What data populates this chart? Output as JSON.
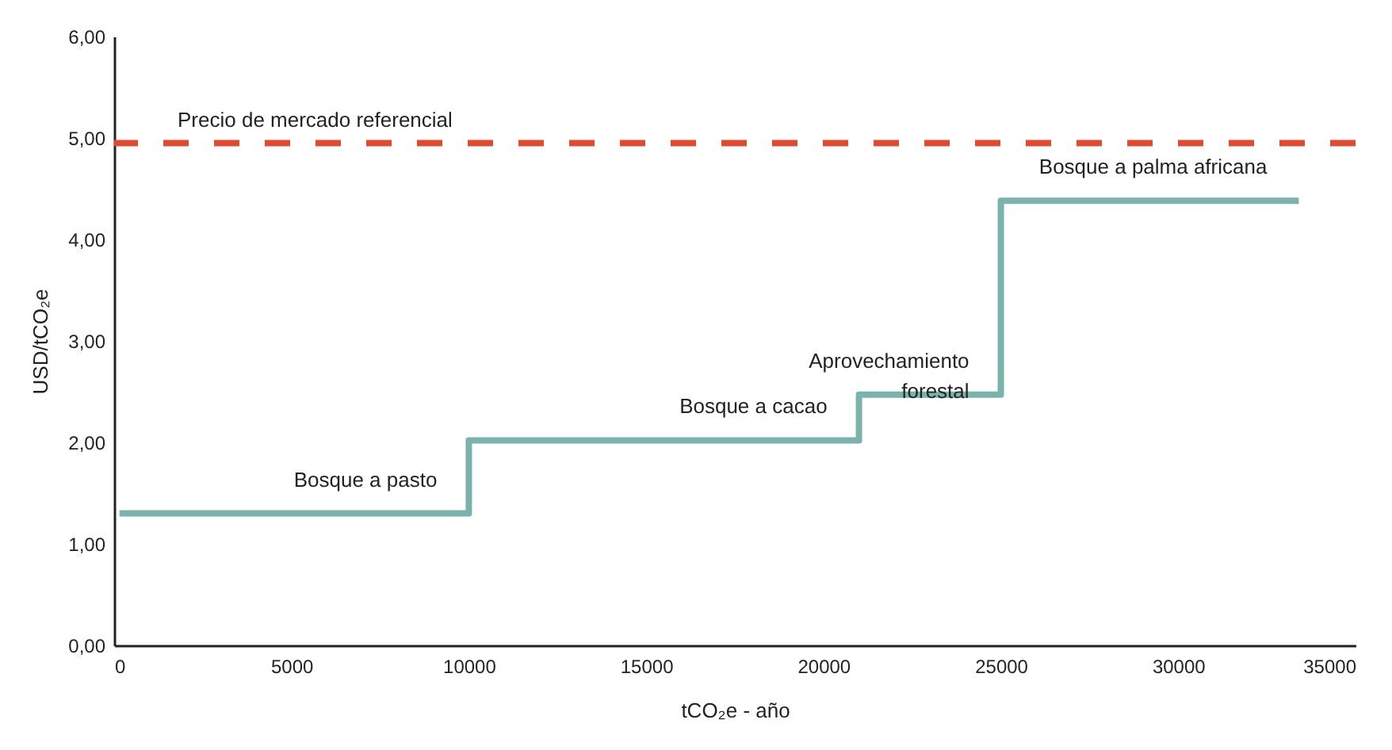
{
  "chart_data": {
    "type": "step",
    "xlabel": "tCO₂e - año",
    "ylabel": "USD/tCO₂e",
    "x": [
      150,
      10000,
      21000,
      25000,
      33400
    ],
    "series": [
      {
        "color": "#7ab3ab",
        "values": [
          1.3,
          2.02,
          2.47,
          4.38,
          4.38
        ]
      }
    ],
    "xlim": [
      0,
      35000
    ],
    "xticks": [
      0,
      5000,
      10000,
      15000,
      20000,
      25000,
      30000,
      35000
    ],
    "ylim": [
      0,
      6
    ],
    "yticks": [
      {
        "value": 0,
        "label": "0,00"
      },
      {
        "value": 1,
        "label": "1,00"
      },
      {
        "value": 2,
        "label": "2,00"
      },
      {
        "value": 3,
        "label": "3,00"
      },
      {
        "value": 4,
        "label": "4,00"
      },
      {
        "value": 5,
        "label": "5,00"
      },
      {
        "value": 6,
        "label": "6,00"
      }
    ],
    "ref_lines": [
      {
        "axis": "y",
        "value": 4.95,
        "label": "Precio de mercado referencial",
        "color": "#e04a2e",
        "line_style": "dashed"
      }
    ],
    "annotations": [
      {
        "text": "Bosque a pasto",
        "x": 10000,
        "y": 1.3
      },
      {
        "text": "Bosque a cacao",
        "x": 21000,
        "y": 2.02
      },
      {
        "text": "Aprovechamiento\nforestal",
        "x": 25000,
        "y": 2.47
      },
      {
        "text": "Bosque a palma africana",
        "x": 33400,
        "y": 4.38
      }
    ],
    "grid": false,
    "marker": "none",
    "line_style": "solid"
  }
}
